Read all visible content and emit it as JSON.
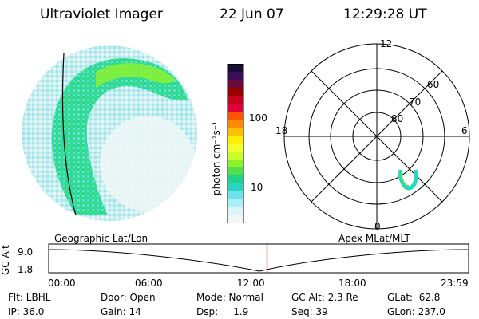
{
  "header": {
    "title": "Ultraviolet Imager",
    "date": "22 Jun 07",
    "time": "12:29:28 UT"
  },
  "colorbar": {
    "unit_label": "photon cm⁻²s⁻¹",
    "ticks": [
      "100",
      "10"
    ],
    "colors": [
      "#1a0c33",
      "#3a0f5a",
      "#6b0a3a",
      "#980000",
      "#c8001e",
      "#e2003a",
      "#ff5500",
      "#ff8a00",
      "#ffbf00",
      "#fff000",
      "#f4ff2a",
      "#c8ff2a",
      "#8ef22a",
      "#4fe04a",
      "#1fd28a",
      "#2ad6c3",
      "#6fe2ec",
      "#aaeff7",
      "#d8f5fa",
      "#f0f7f7"
    ]
  },
  "polar": {
    "mlt_labels": {
      "top": "12",
      "left": "18",
      "right": "6",
      "bottom": "0"
    },
    "lat_labels": [
      "60",
      "70",
      "80"
    ]
  },
  "timeline": {
    "y_axis_label": "GC Alt",
    "y_ticks": [
      "9.0",
      "1.8"
    ],
    "left_caption": "Geographic Lat/Lon",
    "right_caption": "Apex  MLat/MLT",
    "x_ticks": [
      "00:00",
      "06:00",
      "12:00",
      "18:00",
      "23:59"
    ],
    "current_fraction": 0.52
  },
  "info": {
    "row1": {
      "flt": "Flt: LBHL",
      "door": "Door: Open",
      "mode": "Mode: Normal",
      "gcalt": "GC Alt: 2.3 Re",
      "glat": "GLat:  62.8"
    },
    "row2": {
      "ip": "IP: 36.0",
      "gain": "Gain: 14",
      "dsp": "Dsp:     1.9",
      "seq": "Seq: 39",
      "glon": "GLon: 237.0"
    }
  }
}
